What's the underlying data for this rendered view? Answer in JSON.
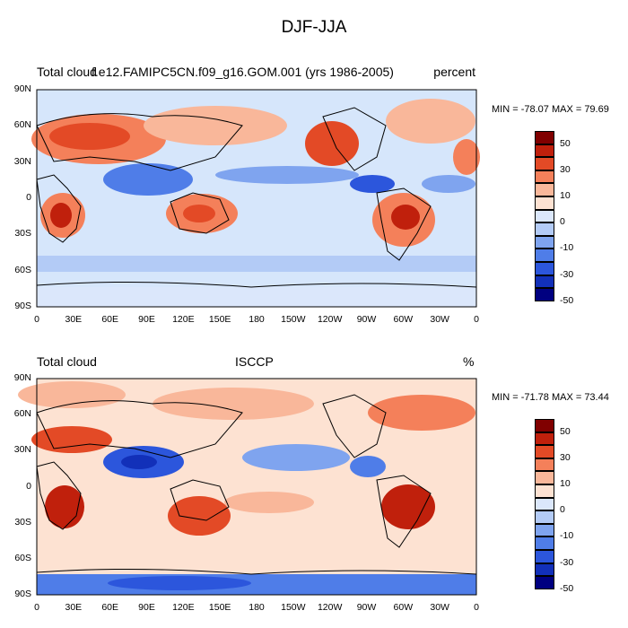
{
  "title": "DJF-JJA",
  "panels": [
    {
      "left_label": "Total cloud",
      "center_label": "f.e12.FAMIPC5CN.f09_g16.GOM.001 (yrs 1986-2005)",
      "right_label": "percent",
      "minmax": "MIN = -78.07 MAX =  79.69"
    },
    {
      "left_label": "Total cloud",
      "center_label": "ISCCP",
      "right_label": "%",
      "minmax": "MIN = -71.78 MAX =  73.44"
    }
  ],
  "lat_labels": [
    "90N",
    "60N",
    "30N",
    "0",
    "30S",
    "60S",
    "90S"
  ],
  "lon_labels": [
    "0",
    "30E",
    "60E",
    "90E",
    "120E",
    "150E",
    "180",
    "150W",
    "120W",
    "90W",
    "60W",
    "30W",
    "0"
  ],
  "colorbar": {
    "labels": [
      "50",
      "30",
      "10",
      "0",
      "-10",
      "-30",
      "-50"
    ],
    "colors": [
      "#800000",
      "#c0200c",
      "#e34a26",
      "#f4805a",
      "#f9b79a",
      "#fde2d2",
      "#dbe7fb",
      "#b3cbf6",
      "#7fa4ef",
      "#4f7de8",
      "#2c56dc",
      "#1230b9",
      "#000080"
    ]
  }
}
